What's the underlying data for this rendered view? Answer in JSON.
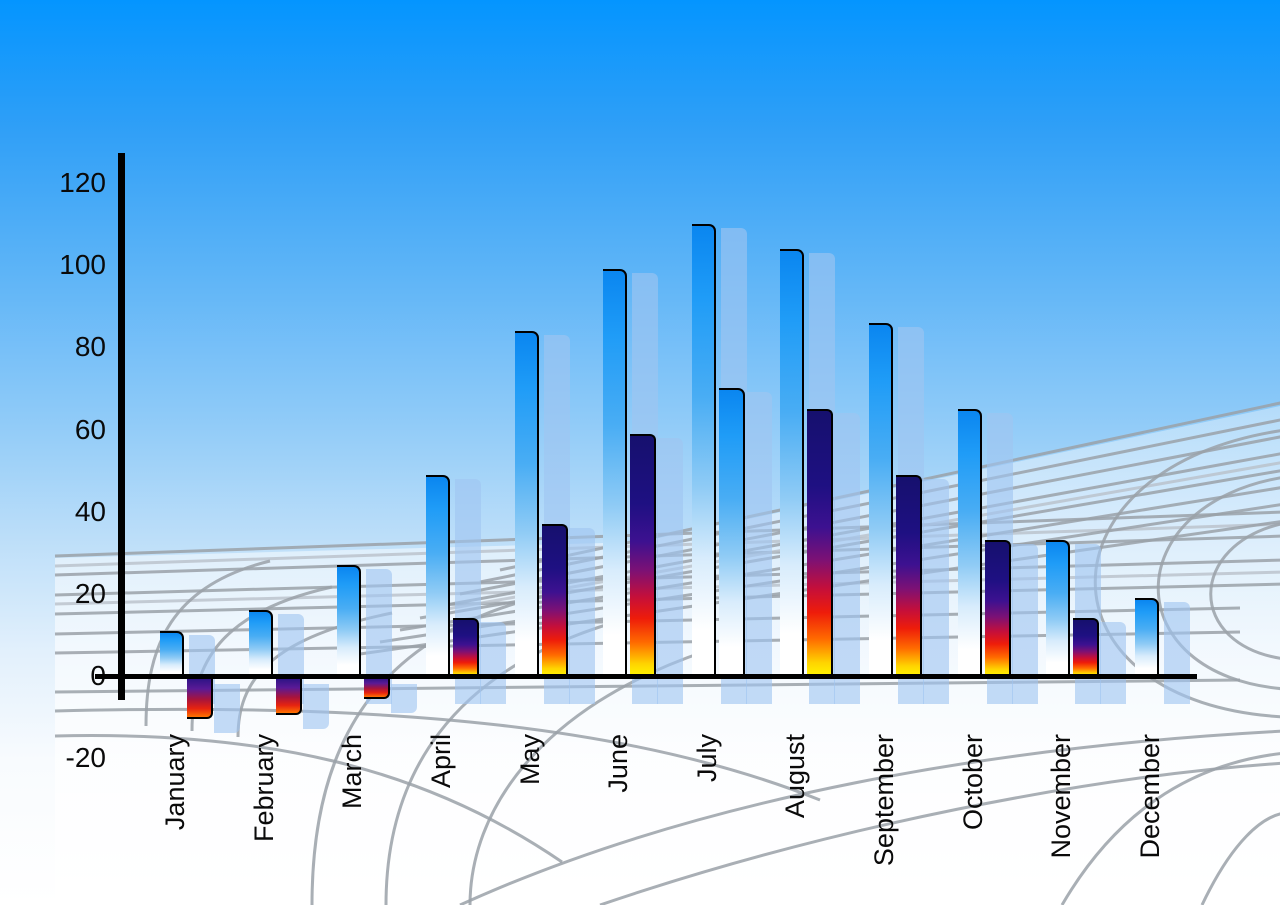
{
  "chart_data": {
    "type": "bar",
    "title": "",
    "categories": [
      "January",
      "February",
      "March",
      "April",
      "May",
      "June",
      "July",
      "August",
      "September",
      "October",
      "November",
      "December"
    ],
    "series": [
      {
        "name": "primary-blue-bars",
        "values": [
          11,
          16,
          27,
          49,
          84,
          99,
          110,
          104,
          86,
          65,
          33,
          19
        ]
      },
      {
        "name": "secondary-fire-bars",
        "values": [
          -10,
          -9,
          -5,
          14,
          37,
          59,
          70,
          65,
          49,
          33,
          14,
          null
        ],
        "bar_styles": [
          "fire",
          "fire",
          "fire",
          "fire",
          "fire",
          "fire",
          "blue",
          "fire",
          "fire",
          "fire",
          "fire",
          null
        ]
      }
    ],
    "xlabel": "",
    "ylabel": "",
    "ylim": [
      -20,
      120
    ],
    "y_ticks": [
      120,
      100,
      80,
      60,
      40,
      20,
      0,
      -20
    ],
    "y_tick_labels": [
      "120",
      "100",
      "80",
      "60",
      "40",
      "20",
      "0",
      "-20"
    ],
    "legend": "none",
    "grid": "decorative curved perspective floor grid",
    "bar_shadows": "each bar has a translucent light-blue ghost offset to the lower right"
  },
  "colors": {
    "sky_top": "#0495ff",
    "sky_bottom": "#ffffff",
    "blue_bar_top": "#0c8ff5",
    "blue_bar_bottom": "#ffffff",
    "fire_bar_navy": "#1a1280",
    "fire_bar_red": "#e11212",
    "fire_bar_yellow": "#fff200",
    "shadow_bar": "rgba(160,197,240,0.62)",
    "grid_line": "#9aa1a8",
    "axis_line": "#000000",
    "label_text": "#0a0a0a"
  }
}
